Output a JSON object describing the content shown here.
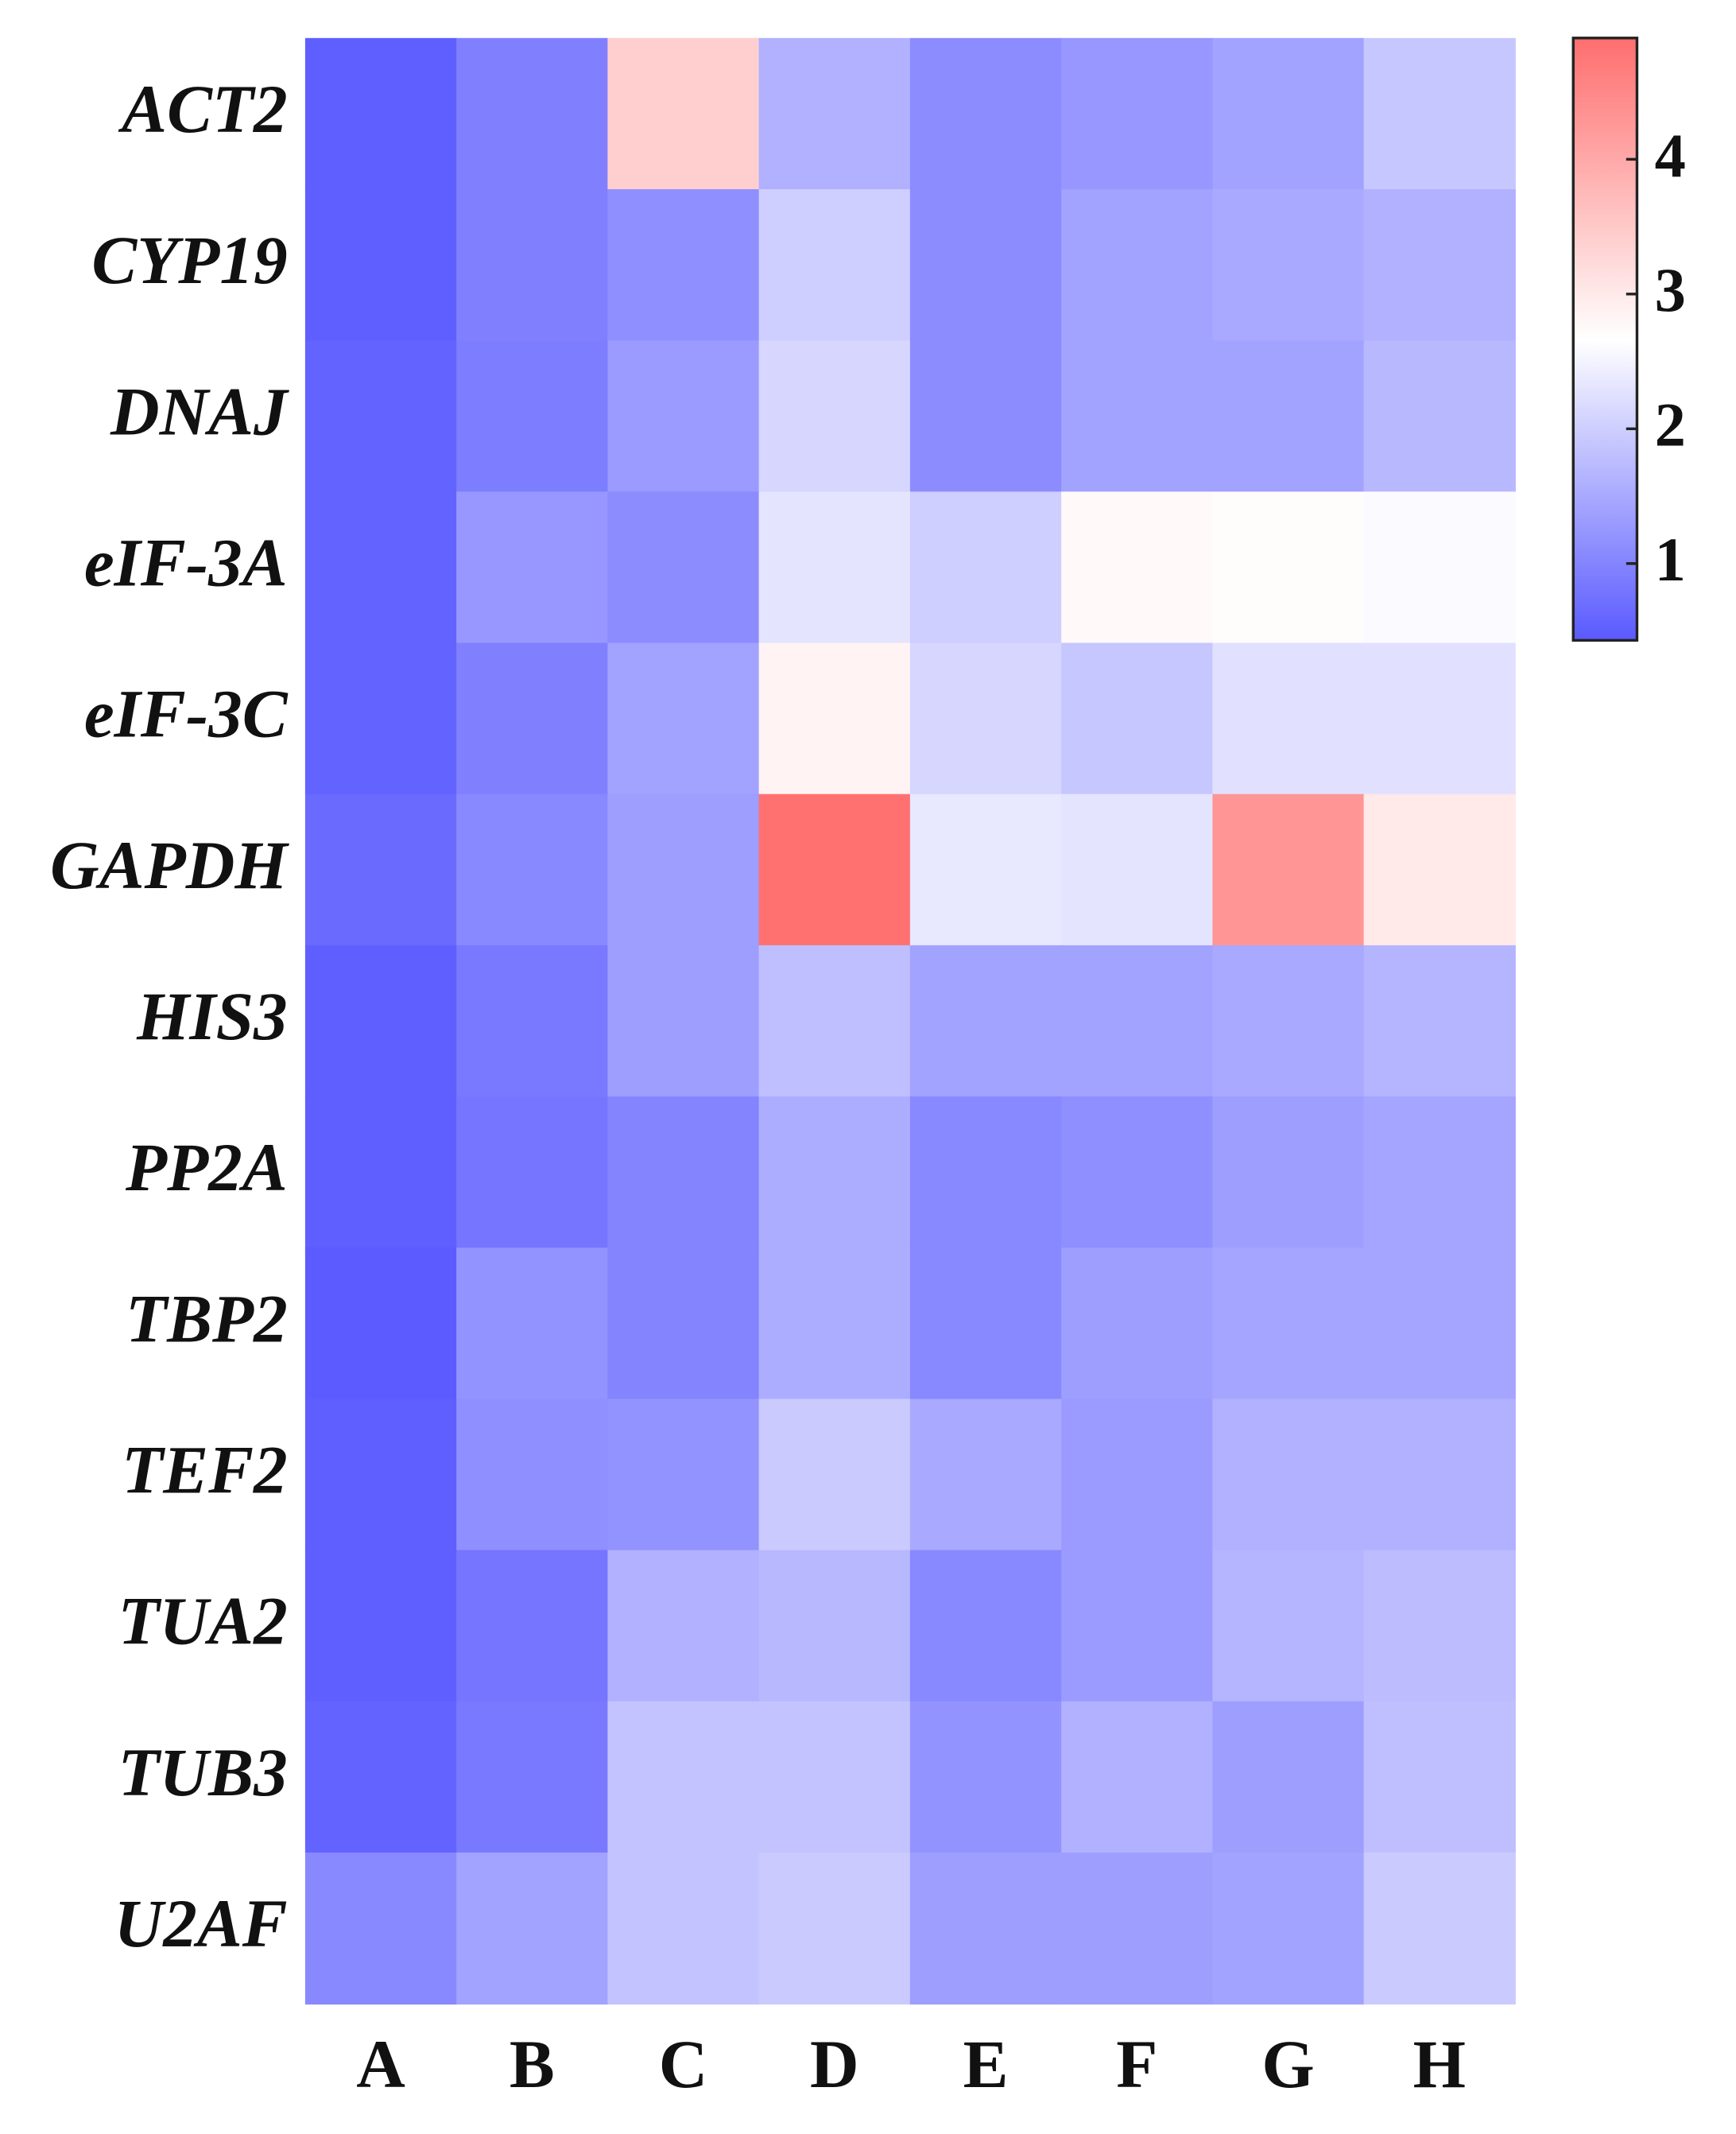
{
  "chart_data": {
    "type": "heatmap",
    "x_categories": [
      "A",
      "B",
      "C",
      "D",
      "E",
      "F",
      "G",
      "H"
    ],
    "y_categories": [
      "ACT2",
      "CYP19",
      "DNAJ",
      "eIF-3A",
      "eIF-3C",
      "GAPDH",
      "HIS3",
      "PP2A",
      "TBP2",
      "TEF2",
      "TUA2",
      "TUB3",
      "U2AF"
    ],
    "values": [
      [
        0.5,
        0.95,
        3.4,
        1.6,
        1.1,
        1.25,
        1.4,
        1.9
      ],
      [
        0.5,
        0.95,
        1.15,
        2.0,
        1.1,
        1.4,
        1.5,
        1.6
      ],
      [
        0.55,
        0.9,
        1.3,
        2.1,
        1.1,
        1.4,
        1.4,
        1.7
      ],
      [
        0.55,
        1.25,
        1.1,
        2.3,
        2.0,
        2.75,
        2.7,
        2.6
      ],
      [
        0.55,
        0.95,
        1.4,
        2.85,
        2.1,
        1.9,
        2.25,
        2.25
      ],
      [
        0.65,
        1.05,
        1.35,
        4.85,
        2.35,
        2.3,
        4.3,
        3.0
      ],
      [
        0.5,
        0.85,
        1.35,
        1.8,
        1.4,
        1.4,
        1.5,
        1.65
      ],
      [
        0.5,
        0.8,
        1.0,
        1.55,
        1.05,
        1.15,
        1.35,
        1.45
      ],
      [
        0.45,
        1.2,
        1.0,
        1.55,
        1.05,
        1.35,
        1.45,
        1.45
      ],
      [
        0.5,
        1.15,
        1.2,
        1.95,
        1.5,
        1.3,
        1.6,
        1.6
      ],
      [
        0.5,
        0.8,
        1.6,
        1.7,
        1.05,
        1.3,
        1.65,
        1.75
      ],
      [
        0.55,
        0.85,
        1.85,
        1.85,
        1.2,
        1.6,
        1.35,
        1.8
      ],
      [
        1.05,
        1.4,
        1.85,
        1.95,
        1.35,
        1.35,
        1.4,
        1.95
      ]
    ],
    "clim": [
      0.43,
      4.9
    ],
    "cticks": [
      1,
      2,
      3,
      4
    ],
    "colormap": [
      {
        "value": 0.43,
        "color": "#5a5aff"
      },
      {
        "value": 2.66,
        "color": "#ffffff"
      },
      {
        "value": 4.9,
        "color": "#ff6e6e"
      }
    ]
  }
}
